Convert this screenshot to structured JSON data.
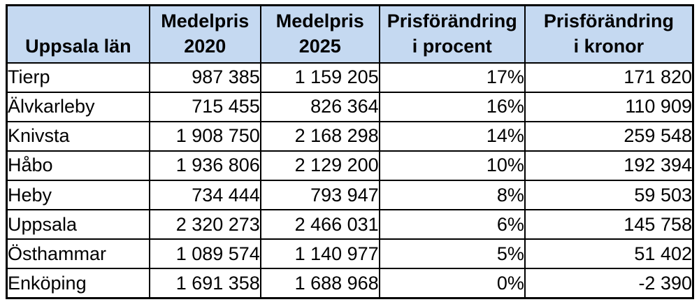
{
  "chart_data": {
    "type": "table",
    "title": "Uppsala län",
    "columns": [
      "Uppsala län",
      "Medelpris 2020",
      "Medelpris 2025",
      "Prisförändring i procent",
      "Prisförändring i kronor"
    ],
    "rows": [
      [
        "Tierp",
        987385,
        1159205,
        "17%",
        171820
      ],
      [
        "Älvkarleby",
        715455,
        826364,
        "16%",
        110909
      ],
      [
        "Knivsta",
        1908750,
        2168298,
        "14%",
        259548
      ],
      [
        "Håbo",
        1936806,
        2129200,
        "10%",
        192394
      ],
      [
        "Heby",
        734444,
        793947,
        "8%",
        59503
      ],
      [
        "Uppsala",
        2320273,
        2466031,
        "6%",
        145758
      ],
      [
        "Östhammar",
        1089574,
        1140977,
        "5%",
        51402
      ],
      [
        "Enköping",
        1691358,
        1688968,
        "0%",
        -2390
      ]
    ]
  },
  "table": {
    "corner_header": "Uppsala län",
    "headers": [
      {
        "line1": "Medelpris",
        "line2": "2020"
      },
      {
        "line1": "Medelpris",
        "line2": "2025"
      },
      {
        "line1": "Prisförändring",
        "line2": "i procent"
      },
      {
        "line1": "Prisförändring",
        "line2": "i kronor"
      }
    ],
    "rows": [
      {
        "name": "Tierp",
        "price2020": "987 385",
        "price2025": "1 159 205",
        "change_percent": "17%",
        "change_kronor": "171 820"
      },
      {
        "name": "Älvkarleby",
        "price2020": "715 455",
        "price2025": "826 364",
        "change_percent": "16%",
        "change_kronor": "110 909"
      },
      {
        "name": "Knivsta",
        "price2020": "1 908 750",
        "price2025": "2 168 298",
        "change_percent": "14%",
        "change_kronor": "259 548"
      },
      {
        "name": "Håbo",
        "price2020": "1 936 806",
        "price2025": "2 129 200",
        "change_percent": "10%",
        "change_kronor": "192 394"
      },
      {
        "name": "Heby",
        "price2020": "734 444",
        "price2025": "793 947",
        "change_percent": "8%",
        "change_kronor": "59 503"
      },
      {
        "name": "Uppsala",
        "price2020": "2 320 273",
        "price2025": "2 466 031",
        "change_percent": "6%",
        "change_kronor": "145 758"
      },
      {
        "name": "Östhammar",
        "price2020": "1 089 574",
        "price2025": "1 140 977",
        "change_percent": "5%",
        "change_kronor": "51 402"
      },
      {
        "name": "Enköping",
        "price2020": "1 691 358",
        "price2025": "1 688 968",
        "change_percent": "0%",
        "change_kronor": "-2 390"
      }
    ]
  },
  "colors": {
    "header_bg": "#c5d9f1",
    "border": "#000000",
    "text": "#000000"
  }
}
